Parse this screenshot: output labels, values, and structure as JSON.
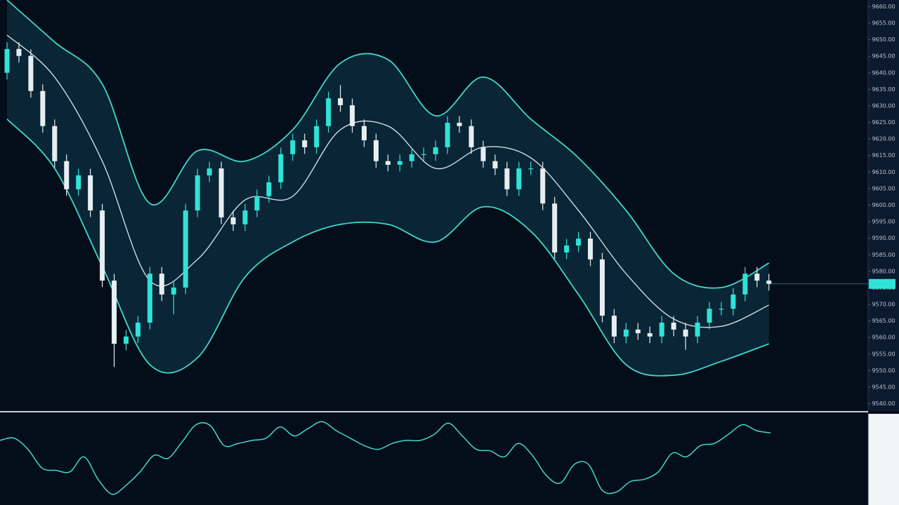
{
  "chart_data": {
    "type": "candlestick",
    "categories": [
      null,
      null,
      null,
      null,
      null,
      null,
      null,
      null,
      null,
      null,
      null,
      null,
      null,
      null,
      null,
      null,
      null,
      null,
      null,
      null,
      null,
      null,
      null,
      null,
      null,
      null,
      null,
      null,
      null,
      null,
      null,
      null,
      null,
      null,
      null,
      null,
      null,
      null,
      null,
      null,
      null,
      null,
      null,
      null,
      null,
      null,
      null,
      null,
      null,
      null,
      null,
      null,
      null,
      null,
      null,
      null,
      null,
      null,
      null,
      null,
      null,
      null,
      null,
      null,
      null
    ],
    "open": [
      9640.0,
      9647.2,
      9645.1,
      9634.5,
      9623.9,
      9613.3,
      9604.8,
      9609.0,
      9598.4,
      9577.2,
      9558.1,
      9560.3,
      9564.5,
      9579.3,
      9573.0,
      9575.1,
      9598.4,
      9609.0,
      9611.1,
      9596.3,
      9594.2,
      9598.4,
      9602.7,
      9606.9,
      9615.4,
      9619.6,
      9617.5,
      9623.9,
      9632.3,
      9630.2,
      9623.9,
      9619.6,
      9613.3,
      9612.2,
      9613.3,
      9615.4,
      9615.4,
      9617.5,
      9624.9,
      9623.9,
      9617.5,
      9613.3,
      9611.1,
      9604.8,
      9611.1,
      9611.1,
      9600.5,
      9585.7,
      9587.8,
      9589.9,
      9583.6,
      9566.6,
      9560.3,
      9562.4,
      9561.3,
      9560.3,
      9564.5,
      9562.4,
      9560.3,
      9564.5,
      9568.7,
      9568.7,
      9573.0,
      9579.3,
      9577.2
    ],
    "high": [
      9649.2,
      9649.2,
      9647.1,
      9636.5,
      9625.9,
      9615.3,
      9611.0,
      9611.0,
      9600.4,
      9579.2,
      9562.3,
      9566.5,
      9581.3,
      9581.3,
      9577.1,
      9600.4,
      9611.0,
      9613.1,
      9613.1,
      9598.3,
      9600.4,
      9604.7,
      9608.9,
      9617.4,
      9621.6,
      9621.6,
      9625.9,
      9634.3,
      9636.3,
      9632.2,
      9625.9,
      9621.6,
      9615.3,
      9615.3,
      9617.4,
      9617.4,
      9619.5,
      9626.9,
      9626.9,
      9625.9,
      9619.5,
      9615.3,
      9613.1,
      9613.1,
      9613.1,
      9613.1,
      9602.5,
      9589.8,
      9591.9,
      9591.9,
      9585.6,
      9568.6,
      9564.4,
      9564.4,
      9563.3,
      9566.5,
      9566.5,
      9564.4,
      9566.5,
      9570.7,
      9570.7,
      9575.0,
      9581.3,
      9581.3,
      9579.2
    ],
    "low": [
      9638.0,
      9643.1,
      9632.5,
      9621.9,
      9611.3,
      9602.8,
      9602.8,
      9596.4,
      9575.2,
      9551.1,
      9556.1,
      9558.3,
      9562.5,
      9571.0,
      9567.0,
      9573.1,
      9596.4,
      9607.0,
      9594.3,
      9592.2,
      9592.2,
      9596.4,
      9600.7,
      9604.9,
      9613.4,
      9615.5,
      9615.5,
      9621.9,
      9628.2,
      9621.9,
      9617.6,
      9611.3,
      9610.2,
      9610.2,
      9611.3,
      9613.4,
      9613.4,
      9615.5,
      9621.9,
      9615.5,
      9611.3,
      9609.1,
      9602.8,
      9602.8,
      9609.1,
      9598.5,
      9583.7,
      9583.7,
      9585.8,
      9581.6,
      9564.6,
      9558.3,
      9558.3,
      9559.3,
      9558.3,
      9558.3,
      9560.4,
      9556.3,
      9558.3,
      9562.5,
      9566.7,
      9566.7,
      9571.0,
      9575.2,
      9574.2
    ],
    "close": [
      9647.2,
      9645.1,
      9634.5,
      9623.9,
      9613.3,
      9604.8,
      9609.0,
      9598.4,
      9577.2,
      9558.1,
      9560.3,
      9564.5,
      9579.3,
      9573.0,
      9575.1,
      9598.4,
      9609.0,
      9611.1,
      9596.3,
      9594.2,
      9598.4,
      9602.7,
      9606.9,
      9615.4,
      9619.6,
      9617.5,
      9623.9,
      9632.3,
      9630.2,
      9623.9,
      9619.6,
      9613.3,
      9612.2,
      9613.3,
      9615.4,
      9615.4,
      9617.5,
      9624.9,
      9623.9,
      9617.5,
      9613.3,
      9611.1,
      9604.8,
      9611.1,
      9611.1,
      9600.5,
      9585.7,
      9587.8,
      9589.9,
      9583.6,
      9566.6,
      9560.3,
      9562.4,
      9561.3,
      9560.3,
      9564.5,
      9562.4,
      9560.3,
      9564.5,
      9568.7,
      9568.7,
      9573.0,
      9579.3,
      9577.2,
      9576.2
    ],
    "up_color": "#2fe3d6",
    "down_color": "#e6eef2",
    "bands": {
      "x": [
        0,
        4,
        8,
        12,
        16,
        20,
        24,
        28,
        32,
        36,
        40,
        44,
        48,
        52,
        56,
        60,
        64
      ],
      "upper": [
        9662.0,
        9649.3,
        9636.6,
        9600.5,
        9616.4,
        9613.3,
        9622.8,
        9642.9,
        9644.0,
        9627.0,
        9638.7,
        9626.0,
        9614.3,
        9598.4,
        9579.3,
        9575.1,
        9582.5
      ],
      "middle": [
        9651.4,
        9638.7,
        9613.3,
        9577.2,
        9583.6,
        9601.6,
        9602.7,
        9622.8,
        9623.9,
        9611.1,
        9617.5,
        9614.3,
        9598.4,
        9579.3,
        9565.6,
        9563.4,
        9569.8
      ],
      "lower": [
        9626.0,
        9611.1,
        9581.5,
        9551.8,
        9553.9,
        9578.3,
        9588.9,
        9594.2,
        9594.2,
        9588.9,
        9599.5,
        9592.1,
        9573.0,
        9551.8,
        9548.6,
        9552.8,
        9558.1
      ],
      "line_color": "#3fd9c8",
      "middle_color": "#e8eef2",
      "fill": "#0f3a4e"
    },
    "ylim": [
      9538,
      9662
    ],
    "yticks": [
      {
        "value": 9660,
        "label": "9660.00"
      },
      {
        "value": 9655,
        "label": "9655.00"
      },
      {
        "value": 9650,
        "label": "9650.00"
      },
      {
        "value": 9645,
        "label": "9645.00"
      },
      {
        "value": 9640,
        "label": "9640.00"
      },
      {
        "value": 9635,
        "label": "9635.00"
      },
      {
        "value": 9630,
        "label": "9630.00"
      },
      {
        "value": 9625,
        "label": "9625.00"
      },
      {
        "value": 9620,
        "label": "9620.00"
      },
      {
        "value": 9615,
        "label": "9615.00"
      },
      {
        "value": 9610,
        "label": "9610.00"
      },
      {
        "value": 9605,
        "label": "9605.00"
      },
      {
        "value": 9600,
        "label": "9600.00"
      },
      {
        "value": 9595,
        "label": "9595.00"
      },
      {
        "value": 9590,
        "label": "9590.00"
      },
      {
        "value": 9585,
        "label": "9585.00"
      },
      {
        "value": 9580,
        "label": "9580.00"
      },
      {
        "value": 9575,
        "label": "9575.00"
      },
      {
        "value": 9570,
        "label": "9570.00"
      },
      {
        "value": 9565,
        "label": "9565.00"
      },
      {
        "value": 9560,
        "label": "9560.00"
      },
      {
        "value": 9555,
        "label": "9555.00"
      },
      {
        "value": 9550,
        "label": "9550.00"
      },
      {
        "value": 9545,
        "label": "9545.00"
      },
      {
        "value": 9540,
        "label": "9540.00"
      }
    ],
    "oscillator": {
      "values": [
        73.3,
        76.2,
        61.9,
        38.1,
        35.2,
        33.3,
        52.4,
        23.8,
        4.8,
        16.2,
        33.3,
        54.3,
        50.5,
        71.4,
        93.3,
        92.4,
        66.7,
        69.5,
        73.3,
        76.2,
        90.5,
        79.0,
        88.6,
        97.1,
        85.7,
        76.2,
        66.7,
        61.9,
        69.5,
        73.3,
        73.3,
        81.0,
        95.2,
        79.0,
        61.9,
        60.0,
        52.4,
        69.5,
        54.3,
        28.6,
        19.0,
        42.9,
        42.9,
        9.5,
        7.6,
        21.0,
        23.8,
        33.3,
        57.1,
        52.4,
        66.7,
        69.5,
        81.0,
        93.3,
        85.7,
        82.9
      ],
      "ylim": [
        0,
        100
      ],
      "color": "#3fd9c8"
    }
  }
}
